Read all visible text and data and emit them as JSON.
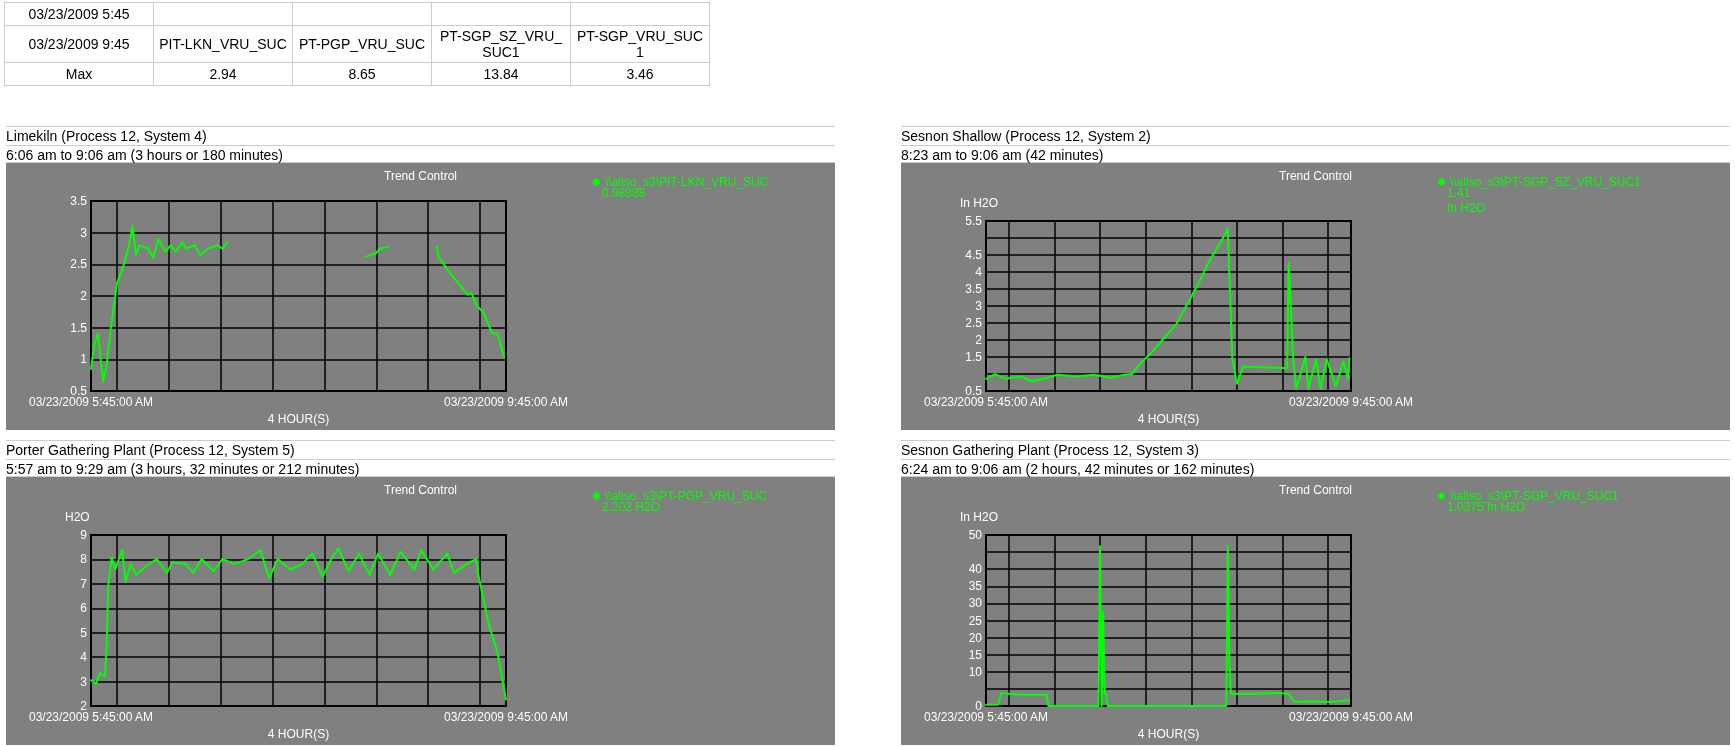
{
  "chart_data": [
    {
      "type": "other",
      "categories": [
        "PIT-LKN_VRU_SUC",
        "PT-PGP_VRU_SUC",
        "PT-SGP_SZ_VRU_SUC1",
        "PT-SGP_VRU_SUC1"
      ],
      "values": [
        2.94,
        8.65,
        13.84,
        3.46
      ],
      "data_labels": true,
      "annotations": [
        "03/23/2009 5:45",
        "03/23/2009 9:45",
        "Max"
      ]
    },
    {
      "type": "line",
      "title": "Limekiln (Process 12, System 4)",
      "subtitle": "6:06 am to 9:06 am (3 hours or 180 minutes)",
      "xlabel": "4 HOUR(S)",
      "annotations": [
        "Trend Control",
        "0.98888"
      ],
      "series": [
        {
          "name": "\\\\aliso_s3\\PIT-LKN_VRU_SUC",
          "color": "#00ff00",
          "x": [
            "2009-03-23T05:45",
            "2009-03-23T05:47",
            "2009-03-23T05:49",
            "2009-03-23T05:52",
            "2009-03-23T05:54",
            "2009-03-23T05:56",
            "2009-03-23T06:00",
            "2009-03-23T06:04",
            "2009-03-23T06:07",
            "2009-03-23T06:09",
            "2009-03-23T06:11",
            "2009-03-23T06:13",
            "2009-03-23T06:18",
            "2009-03-23T06:21",
            "2009-03-23T06:24",
            "2009-03-23T06:28",
            "2009-03-23T06:31",
            "2009-03-23T06:34",
            "2009-03-23T06:38",
            "2009-03-23T06:40",
            "2009-03-23T06:45",
            "2009-03-23T06:48",
            "2009-03-23T06:53",
            "2009-03-23T06:58",
            "2009-03-23T07:01",
            "2009-03-23T07:04",
            "2009-03-23T07:30",
            "2009-03-23T08:24",
            "2009-03-23T08:30",
            "2009-03-23T08:32",
            "2009-03-23T08:37",
            "2009-03-23T08:48",
            "2009-03-23T09:05",
            "2009-03-23T09:06",
            "2009-03-23T09:13",
            "2009-03-23T09:23",
            "2009-03-23T09:25",
            "2009-03-23T09:28",
            "2009-03-23T09:32",
            "2009-03-23T09:37",
            "2009-03-23T09:40",
            "2009-03-23T09:44"
          ],
          "values": [
            0.85,
            1.25,
            1.4,
            0.65,
            0.9,
            1.4,
            2.2,
            2.5,
            2.8,
            3.1,
            2.65,
            2.8,
            2.75,
            2.6,
            2.9,
            2.7,
            2.8,
            2.7,
            2.85,
            2.75,
            2.8,
            2.65,
            2.75,
            2.8,
            2.75,
            2.85,
            null,
            2.62,
            2.68,
            2.75,
            2.78,
            null,
            2.78,
            2.62,
            2.35,
            2.02,
            2.05,
            1.85,
            1.74,
            1.41,
            1.41,
            1.03
          ]
        }
      ],
      "xlim": [
        "2009-03-23T05:45",
        "2009-03-23T09:45"
      ],
      "xticks": [
        {
          "value": "2009-03-23T05:45",
          "label": "03/23/2009 5:45:00 AM"
        },
        {
          "value": "2009-03-23T06:00",
          "label": null
        },
        {
          "value": "2009-03-23T06:30",
          "label": null
        },
        {
          "value": "2009-03-23T07:00",
          "label": null
        },
        {
          "value": "2009-03-23T07:30",
          "label": null
        },
        {
          "value": "2009-03-23T08:00",
          "label": null
        },
        {
          "value": "2009-03-23T08:30",
          "label": null
        },
        {
          "value": "2009-03-23T09:00",
          "label": null
        },
        {
          "value": "2009-03-23T09:30",
          "label": null
        },
        {
          "value": "2009-03-23T09:45",
          "label": "03/23/2009 9:45:00 AM"
        }
      ],
      "ylim": [
        0.5,
        3.5
      ],
      "yticks": [
        0.5,
        1,
        1.5,
        2,
        2.5,
        3,
        3.5
      ],
      "grid": true,
      "legend": "top right",
      "marker": "none",
      "line_style": "solid"
    },
    {
      "type": "line",
      "title": "Sesnon Shallow (Process 12, System 2)",
      "subtitle": "8:23 am to 9:06 am (42 minutes)",
      "xlabel": "4 HOUR(S)",
      "ylabel": "In H2O",
      "annotations": [
        "Trend Control",
        "1.41",
        "In H2O"
      ],
      "series": [
        {
          "name": "\\\\aliso_s3\\PT-SGP_SZ_VRU_SUC1",
          "color": "#00ff00",
          "x": [
            "2009-03-23T05:45",
            "2009-03-23T05:51",
            "2009-03-23T05:58",
            "2009-03-23T06:08",
            "2009-03-23T06:15",
            "2009-03-23T06:23",
            "2009-03-23T06:32",
            "2009-03-23T06:44",
            "2009-03-23T06:56",
            "2009-03-23T07:07",
            "2009-03-23T07:16",
            "2009-03-23T07:21",
            "2009-03-23T07:26",
            "2009-03-23T07:33",
            "2009-03-23T07:40",
            "2009-03-23T07:50",
            "2009-03-23T07:58",
            "2009-03-23T08:05",
            "2009-03-23T08:12",
            "2009-03-23T08:19",
            "2009-03-23T08:24",
            "2009-03-23T08:25",
            "2009-03-23T08:27",
            "2009-03-23T08:30",
            "2009-03-23T08:34",
            "2009-03-23T08:58",
            "2009-03-23T09:03",
            "2009-03-23T09:04",
            "2009-03-23T09:07",
            "2009-03-23T09:09",
            "2009-03-23T09:15",
            "2009-03-23T09:17",
            "2009-03-23T09:22",
            "2009-03-23T09:25",
            "2009-03-23T09:29",
            "2009-03-23T09:35",
            "2009-03-23T09:40",
            "2009-03-23T09:43",
            "2009-03-23T09:44"
          ],
          "values": [
            0.86,
            1.0,
            0.86,
            0.93,
            0.79,
            0.86,
            0.98,
            0.93,
            0.98,
            0.89,
            0.98,
            1.0,
            1.3,
            1.59,
            1.95,
            2.46,
            3.11,
            3.69,
            4.34,
            4.85,
            5.28,
            3.91,
            1.44,
            0.72,
            1.22,
            1.18,
            1.18,
            4.27,
            1.44,
            0.57,
            1.51,
            0.57,
            1.44,
            0.57,
            1.44,
            0.64,
            1.37,
            0.86,
            1.47
          ]
        }
      ],
      "xlim": [
        "2009-03-23T05:45",
        "2009-03-23T09:45"
      ],
      "xticks": [
        {
          "value": "2009-03-23T05:45",
          "label": "03/23/2009 5:45:00 AM"
        },
        {
          "value": "2009-03-23T06:00",
          "label": null
        },
        {
          "value": "2009-03-23T06:30",
          "label": null
        },
        {
          "value": "2009-03-23T07:00",
          "label": null
        },
        {
          "value": "2009-03-23T07:30",
          "label": null
        },
        {
          "value": "2009-03-23T08:00",
          "label": null
        },
        {
          "value": "2009-03-23T08:30",
          "label": null
        },
        {
          "value": "2009-03-23T09:00",
          "label": null
        },
        {
          "value": "2009-03-23T09:30",
          "label": null
        },
        {
          "value": "2009-03-23T09:45",
          "label": "03/23/2009 9:45:00 AM"
        }
      ],
      "ylim": [
        0.5,
        5.5
      ],
      "yticks": [
        0.5,
        {
          "value": 1,
          "label": null
        },
        1.5,
        2,
        2.5,
        3,
        3.5,
        4,
        4.5,
        {
          "value": 5,
          "label": null
        },
        5.5
      ],
      "grid": true,
      "legend": "top right",
      "marker": "none",
      "line_style": "solid"
    },
    {
      "type": "line",
      "title": "Porter Gathering Plant (Process 12, System 5)",
      "subtitle": "5:57 am to 9:29 am (3 hours, 32 minutes or 212 minutes)",
      "xlabel": "4 HOUR(S)",
      "ylabel": "H2O",
      "annotations": [
        "Trend Control",
        "2.202 H2O"
      ],
      "series": [
        {
          "name": "\\\\aliso_s3\\PT-PGP_VRU_SUC",
          "color": "#00ff00",
          "x": [
            "2009-03-23T05:45",
            "2009-03-23T05:48",
            "2009-03-23T05:50",
            "2009-03-23T05:53",
            "2009-03-23T05:54",
            "2009-03-23T05:55",
            "2009-03-23T05:57",
            "2009-03-23T05:59",
            "2009-03-23T06:03",
            "2009-03-23T06:05",
            "2009-03-23T06:08",
            "2009-03-23T06:11",
            "2009-03-23T06:17",
            "2009-03-23T06:23",
            "2009-03-23T06:29",
            "2009-03-23T06:32",
            "2009-03-23T06:40",
            "2009-03-23T06:44",
            "2009-03-23T06:49",
            "2009-03-23T06:56",
            "2009-03-23T07:01",
            "2009-03-23T07:08",
            "2009-03-23T07:16",
            "2009-03-23T07:23",
            "2009-03-23T07:28",
            "2009-03-23T07:33",
            "2009-03-23T07:40",
            "2009-03-23T07:47",
            "2009-03-23T07:53",
            "2009-03-23T07:59",
            "2009-03-23T08:04",
            "2009-03-23T08:08",
            "2009-03-23T08:14",
            "2009-03-23T08:20",
            "2009-03-23T08:26",
            "2009-03-23T08:31",
            "2009-03-23T08:38",
            "2009-03-23T08:44",
            "2009-03-23T08:52",
            "2009-03-23T08:56",
            "2009-03-23T09:03",
            "2009-03-23T09:11",
            "2009-03-23T09:15",
            "2009-03-23T09:22",
            "2009-03-23T09:28",
            "2009-03-23T09:29",
            "2009-03-23T09:35",
            "2009-03-23T09:40",
            "2009-03-23T09:45"
          ],
          "values": [
            3.06,
            2.91,
            3.35,
            3.2,
            4.35,
            6.94,
            8.09,
            7.59,
            8.38,
            7.09,
            7.81,
            7.37,
            7.73,
            8.02,
            7.45,
            7.88,
            7.81,
            7.45,
            8.02,
            7.52,
            8.02,
            7.81,
            8.02,
            8.38,
            7.23,
            8.02,
            7.59,
            7.81,
            8.24,
            7.3,
            8.02,
            8.45,
            7.52,
            8.24,
            7.37,
            8.24,
            7.37,
            8.31,
            7.59,
            8.38,
            7.59,
            8.24,
            7.45,
            7.81,
            8.02,
            7.37,
            5.36,
            4.21,
            2.27
          ]
        }
      ],
      "xlim": [
        "2009-03-23T05:45",
        "2009-03-23T09:45"
      ],
      "xticks": [
        {
          "value": "2009-03-23T05:45",
          "label": "03/23/2009 5:45:00 AM"
        },
        {
          "value": "2009-03-23T06:00",
          "label": null
        },
        {
          "value": "2009-03-23T06:30",
          "label": null
        },
        {
          "value": "2009-03-23T07:00",
          "label": null
        },
        {
          "value": "2009-03-23T07:30",
          "label": null
        },
        {
          "value": "2009-03-23T08:00",
          "label": null
        },
        {
          "value": "2009-03-23T08:30",
          "label": null
        },
        {
          "value": "2009-03-23T09:00",
          "label": null
        },
        {
          "value": "2009-03-23T09:30",
          "label": null
        },
        {
          "value": "2009-03-23T09:45",
          "label": "03/23/2009 9:45:00 AM"
        }
      ],
      "ylim": [
        2,
        9
      ],
      "yticks": [
        2,
        3,
        4,
        5,
        6,
        7,
        8,
        9
      ],
      "grid": true,
      "legend": "top right",
      "marker": "none",
      "line_style": "solid"
    },
    {
      "type": "line",
      "title": "Sesnon Gathering Plant (Process 12, System 3)",
      "subtitle": "6:24 am to 9:06 am (2 hours, 42 minutes or 162 minutes)",
      "xlabel": "4 HOUR(S)",
      "ylabel": "In H2O",
      "annotations": [
        "Trend Control",
        "1.0375 In H2O"
      ],
      "series": [
        {
          "name": "\\\\aliso_s3\\PT-SGP_VRU_SUC1",
          "color": "#00ff00",
          "x": [
            "2009-03-23T05:45",
            "2009-03-23T05:53",
            "2009-03-23T05:55",
            "2009-03-23T06:09",
            "2009-03-23T06:25",
            "2009-03-23T06:26",
            "2009-03-23T06:50",
            "2009-03-23T06:59",
            "2009-03-23T07:00",
            "2009-03-23T07:01",
            "2009-03-23T07:02",
            "2009-03-23T07:03",
            "2009-03-23T07:04",
            "2009-03-23T07:05",
            "2009-03-23T07:53",
            "2009-03-23T08:23",
            "2009-03-23T08:24",
            "2009-03-23T08:25",
            "2009-03-23T08:26",
            "2009-03-23T08:41",
            "2009-03-23T08:58",
            "2009-03-23T09:04",
            "2009-03-23T09:08",
            "2009-03-23T09:20",
            "2009-03-23T09:32",
            "2009-03-23T09:44"
          ],
          "values": [
            0.4,
            0.4,
            3.8,
            3.3,
            3.3,
            0,
            0,
            0,
            46.7,
            0,
            27.5,
            3.6,
            3.6,
            0,
            0,
            0,
            46.7,
            13,
            3.6,
            3.6,
            3.8,
            3.6,
            1.2,
            1.4,
            1.2,
            1.7
          ]
        }
      ],
      "xlim": [
        "2009-03-23T05:45",
        "2009-03-23T09:45"
      ],
      "xticks": [
        {
          "value": "2009-03-23T05:45",
          "label": "03/23/2009 5:45:00 AM"
        },
        {
          "value": "2009-03-23T06:00",
          "label": null
        },
        {
          "value": "2009-03-23T06:30",
          "label": null
        },
        {
          "value": "2009-03-23T07:00",
          "label": null
        },
        {
          "value": "2009-03-23T07:30",
          "label": null
        },
        {
          "value": "2009-03-23T08:00",
          "label": null
        },
        {
          "value": "2009-03-23T08:30",
          "label": null
        },
        {
          "value": "2009-03-23T09:00",
          "label": null
        },
        {
          "value": "2009-03-23T09:30",
          "label": null
        },
        {
          "value": "2009-03-23T09:45",
          "label": "03/23/2009 9:45:00 AM"
        }
      ],
      "ylim": [
        0,
        50
      ],
      "yticks": [
        0,
        {
          "value": 5,
          "label": null
        },
        10,
        15,
        20,
        25,
        30,
        35,
        40,
        {
          "value": 45,
          "label": null
        },
        50
      ],
      "grid": true,
      "legend": "top right",
      "marker": "none",
      "line_style": "solid"
    }
  ]
}
